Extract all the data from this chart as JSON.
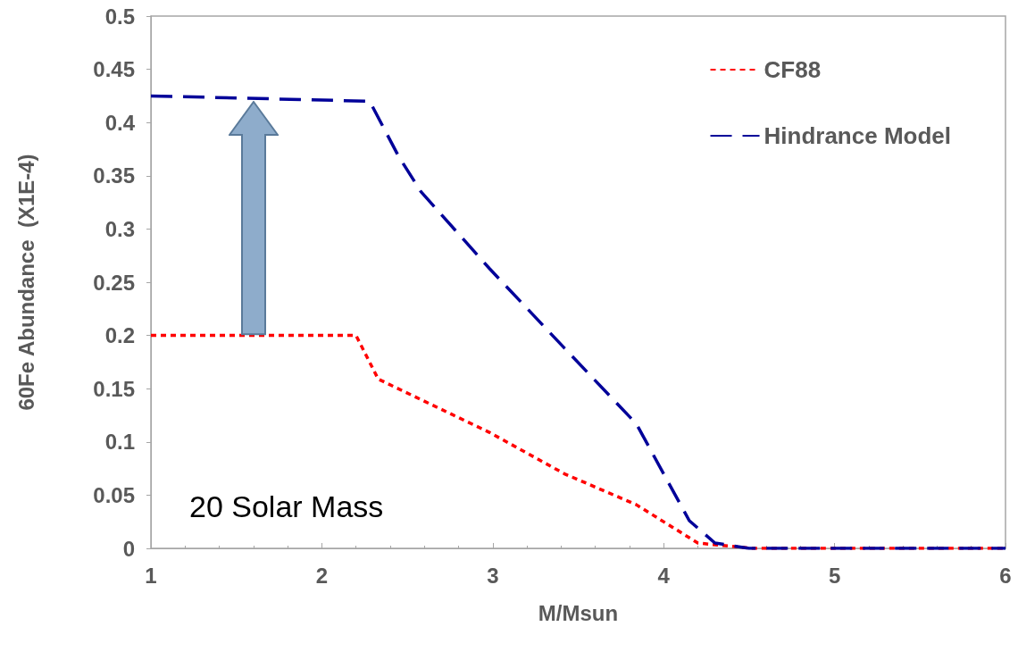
{
  "chart_data": {
    "type": "line",
    "xlabel": "M/Msun",
    "ylabel": "60Fe Abundance  (X1E-4)",
    "xlim": [
      1,
      6
    ],
    "xticks": [
      1,
      2,
      3,
      4,
      5,
      6
    ],
    "ylim": [
      0,
      0.5
    ],
    "yticks": [
      0,
      0.05,
      0.1,
      0.15,
      0.2,
      0.25,
      0.3,
      0.35,
      0.4,
      0.45,
      0.5
    ],
    "grid": false,
    "legend": "top right",
    "marker": "none",
    "annotations": [
      "20 Solar Mass"
    ],
    "series": [
      {
        "name": "CF88",
        "color": "#ff0000",
        "line_style": "dotted",
        "x": [
          1,
          2.2,
          2.33,
          2.98,
          3.42,
          3.84,
          4.2,
          4.52,
          6
        ],
        "values": [
          0.2,
          0.2,
          0.159,
          0.109,
          0.07,
          0.041,
          0.005,
          0,
          0
        ]
      },
      {
        "name": "Hindrance Model",
        "color": "#000099",
        "line_style": "dashed",
        "x": [
          1,
          2.28,
          2.45,
          2.58,
          2.98,
          3.42,
          3.84,
          4.15,
          4.3,
          4.5,
          6
        ],
        "values": [
          0.425,
          0.42,
          0.368,
          0.335,
          0.263,
          0.188,
          0.117,
          0.026,
          0.005,
          0,
          0
        ]
      }
    ]
  }
}
